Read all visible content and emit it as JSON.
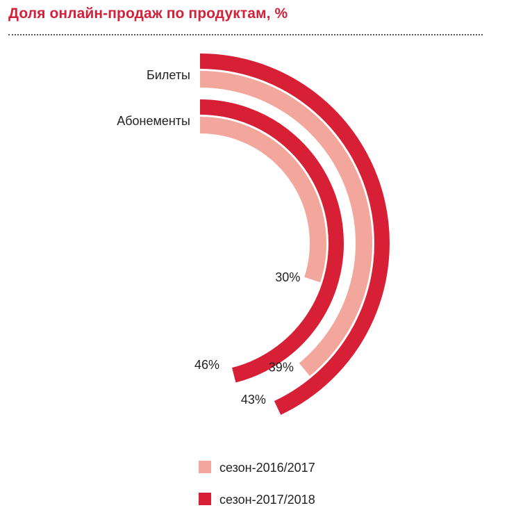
{
  "title": "Доля онлайн-продаж по продуктам, %",
  "colors": {
    "title": "#d2213a",
    "season_2016": "#f3a69b",
    "season_2017": "#d71f36"
  },
  "chart_data": {
    "type": "radial-bar",
    "title": "Доля онлайн-продаж по продуктам, %",
    "unit": "%",
    "categories": [
      "Билеты",
      "Абонементы"
    ],
    "series": [
      {
        "name": "сезон-2016/2017",
        "color": "#f3a69b",
        "values": [
          39,
          30
        ],
        "labels": [
          "39%",
          "30%"
        ]
      },
      {
        "name": "сезон-2017/2018",
        "color": "#d71f36",
        "values": [
          43,
          46
        ],
        "labels": [
          "43%",
          "46%"
        ]
      }
    ],
    "legend": {
      "position": "bottom",
      "items": [
        {
          "label": "сезон-2016/2017",
          "color": "#f3a69b"
        },
        {
          "label": "сезон-2017/2018",
          "color": "#d71f36"
        }
      ]
    }
  }
}
